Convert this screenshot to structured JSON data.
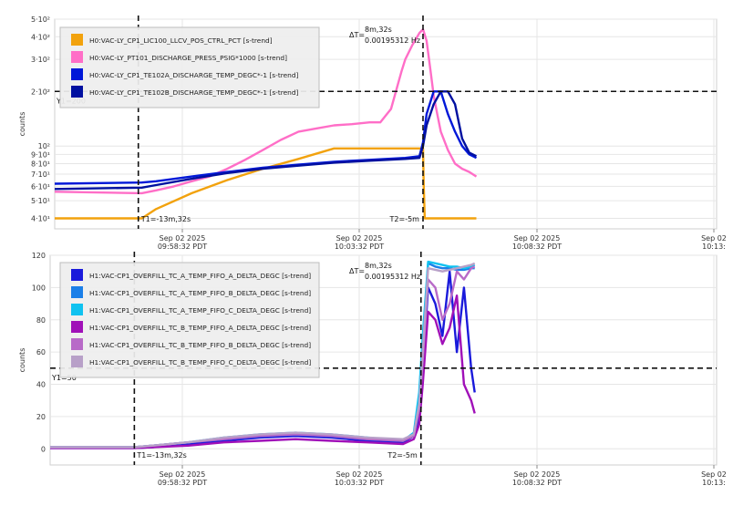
{
  "chart_data": [
    {
      "type": "line",
      "ylabel": "counts",
      "yscale": "log",
      "ylim": [
        35,
        500
      ],
      "ytick_values": [
        40,
        50,
        60,
        70,
        80,
        90,
        100,
        200,
        300,
        400,
        500
      ],
      "ytick_labels": [
        "4·10¹",
        "5·10¹",
        "6·10¹",
        "7·10¹",
        "8·10¹",
        "9·10¹",
        "10²",
        "2·10²",
        "3·10²",
        "4·10²",
        "5·10²"
      ],
      "xticks": [
        {
          "line1": "Sep 02 2025",
          "line2": "09:58:32 PDT"
        },
        {
          "line1": "Sep 02 2025",
          "line2": "10:03:32 PDT"
        },
        {
          "line1": "Sep 02 2025",
          "line2": "10:08:32 PDT"
        },
        {
          "line1": "Sep 02",
          "line2": "10:13:"
        }
      ],
      "xlim_min_offsets_from_first_tick": [
        -2.85,
        15.75
      ],
      "cursors": {
        "t1_label": "T1=-13m,32s",
        "t2_label": "T2=-5m",
        "t1_x": -0.5,
        "t2_x": 7.5,
        "y1_label": "Y1=200",
        "y1_value": 200,
        "delta_label": "ΔT=",
        "delta_time": "8m,32s",
        "delta_freq": "0.00195312 Hz"
      },
      "series": [
        {
          "name": "H0:VAC-LY_CP1_LIC100_LLCV_POS_CTRL_PCT [s-trend]",
          "color": "#f2a20d",
          "x": [
            -2.85,
            -0.4,
            0,
            1,
            2,
            3,
            4,
            5,
            6,
            7,
            7.5,
            7.52,
            7.55,
            8.0,
            9.0
          ],
          "y": [
            40,
            40,
            45,
            55,
            65,
            75,
            85,
            97,
            97,
            97,
            97,
            60,
            40,
            40,
            40
          ]
        },
        {
          "name": "H0:VAC-LY_PT101_DISCHARGE_PRESS_PSIG*1000 [s-trend]",
          "color": "#ff6ec7",
          "x": [
            -2.85,
            -0.4,
            0,
            0.5,
            1,
            1.5,
            2,
            2.5,
            3,
            3.5,
            4,
            4.5,
            5,
            5.5,
            6,
            6.3,
            6.6,
            6.9,
            7.0,
            7.2,
            7.4,
            7.5,
            7.6,
            7.7,
            7.8,
            7.9,
            8.0,
            8.2,
            8.4,
            8.6,
            8.8,
            9.0
          ],
          "y": [
            56,
            55,
            57,
            60,
            64,
            68,
            75,
            84,
            95,
            108,
            120,
            125,
            130,
            132,
            135,
            135,
            160,
            260,
            300,
            360,
            420,
            440,
            380,
            270,
            190,
            150,
            120,
            95,
            80,
            75,
            72,
            68
          ]
        },
        {
          "name": "H0:VAC-LY_CP1_TE102A_DISCHARGE_TEMP_DEGC*-1 [s-trend]",
          "color": "#0018d8",
          "x": [
            -2.85,
            -0.4,
            0,
            1,
            2,
            3,
            4,
            5,
            6,
            7,
            7.4,
            7.5,
            7.6,
            7.8,
            8.0,
            8.2,
            8.4,
            8.6,
            8.8,
            9.0
          ],
          "y": [
            62,
            63,
            64,
            68,
            72,
            76,
            79,
            82,
            84,
            86,
            88,
            105,
            150,
            200,
            200,
            150,
            120,
            100,
            90,
            86
          ]
        },
        {
          "name": "H0:VAC-LY_CP1_TE102B_DISCHARGE_TEMP_DEGC*-1 [s-trend]",
          "color": "#0010a0",
          "x": [
            -2.85,
            -0.4,
            0,
            1,
            2,
            3,
            4,
            5,
            6,
            7,
            7.4,
            7.5,
            7.6,
            7.8,
            8.0,
            8.2,
            8.4,
            8.6,
            8.8,
            9.0
          ],
          "y": [
            58,
            59,
            61,
            66,
            71,
            75,
            78,
            81,
            83,
            85,
            86,
            100,
            130,
            170,
            200,
            200,
            170,
            110,
            92,
            88
          ]
        }
      ]
    },
    {
      "type": "line",
      "ylabel": "counts",
      "yscale": "linear",
      "ylim": [
        -10,
        120
      ],
      "ytick_values": [
        0,
        20,
        40,
        60,
        80,
        100,
        120
      ],
      "ytick_labels": [
        "0",
        "20",
        "40",
        "60",
        "80",
        "100",
        "120"
      ],
      "xticks": [
        {
          "line1": "Sep 02 2025",
          "line2": "09:58:32 PDT"
        },
        {
          "line1": "Sep 02 2025",
          "line2": "10:03:32 PDT"
        },
        {
          "line1": "Sep 02 2025",
          "line2": "10:08:32 PDT"
        },
        {
          "line1": "Sep 02",
          "line2": "10:13:"
        }
      ],
      "xlim_min_offsets_from_first_tick": [
        -2.85,
        15.75
      ],
      "cursors": {
        "t1_label": "T1=-13m,32s",
        "t2_label": "T2=-5m",
        "t1_x": -0.5,
        "t2_x": 7.5,
        "y1_label": "Y1=50",
        "y1_value": 50,
        "delta_label": "ΔT=",
        "delta_time": "8m,32s",
        "delta_freq": "0.00195312 Hz"
      },
      "series": [
        {
          "name": "H1:VAC-CP1_OVERFILL_TC_A_TEMP_FIFO_A_DELTA_DEGC [s-trend]",
          "color": "#1a1adb",
          "x": [
            -2.85,
            -0.5,
            0,
            1,
            2,
            3,
            4,
            5,
            6,
            7,
            7.3,
            7.45,
            7.55,
            7.7,
            7.9,
            8.1,
            8.3,
            8.5,
            8.7,
            8.9,
            9.0
          ],
          "y": [
            0.5,
            0.5,
            1,
            3,
            5,
            7,
            8,
            7,
            5,
            4,
            8,
            20,
            50,
            100,
            90,
            70,
            110,
            60,
            100,
            50,
            35
          ]
        },
        {
          "name": "H1:VAC-CP1_OVERFILL_TC_A_TEMP_FIFO_B_DELTA_DEGC [s-trend]",
          "color": "#1b7fe8",
          "x": [
            -2.85,
            -0.5,
            0,
            1,
            2,
            3,
            4,
            5,
            6,
            7,
            7.3,
            7.45,
            7.55,
            7.7,
            7.9,
            8.1,
            8.3,
            8.5,
            8.7,
            8.9,
            9.0
          ],
          "y": [
            1,
            1,
            2,
            4,
            6,
            8,
            9,
            8,
            6,
            5,
            9,
            30,
            60,
            115,
            113,
            112,
            112,
            111,
            111,
            112,
            112
          ]
        },
        {
          "name": "H1:VAC-CP1_OVERFILL_TC_A_TEMP_FIFO_C_DELTA_DEGC [s-trend]",
          "color": "#10c2f0",
          "x": [
            -2.85,
            -0.5,
            0,
            1,
            2,
            3,
            4,
            5,
            6,
            7,
            7.3,
            7.45,
            7.55,
            7.7,
            7.9,
            8.1,
            8.3,
            8.5,
            8.7,
            8.9,
            9.0
          ],
          "y": [
            1,
            1,
            2,
            4,
            7,
            9,
            10,
            9,
            7,
            5,
            10,
            35,
            70,
            116,
            115,
            114,
            113,
            113,
            112,
            113,
            114
          ]
        },
        {
          "name": "H1:VAC-CP1_OVERFILL_TC_B_TEMP_FIFO_A_DELTA_DEGC [s-trend]",
          "color": "#a010b8",
          "x": [
            -2.85,
            -0.5,
            0,
            1,
            2,
            3,
            4,
            5,
            6,
            7,
            7.3,
            7.45,
            7.55,
            7.7,
            7.9,
            8.1,
            8.3,
            8.5,
            8.7,
            8.9,
            9.0
          ],
          "y": [
            0.5,
            0.5,
            1,
            2,
            4,
            5,
            6,
            5,
            4,
            3,
            6,
            15,
            40,
            85,
            80,
            65,
            75,
            95,
            40,
            30,
            22
          ]
        },
        {
          "name": "H1:VAC-CP1_OVERFILL_TC_B_TEMP_FIFO_B_DELTA_DEGC [s-trend]",
          "color": "#b86ac8",
          "x": [
            -2.85,
            -0.5,
            0,
            1,
            2,
            3,
            4,
            5,
            6,
            7,
            7.3,
            7.45,
            7.55,
            7.7,
            7.9,
            8.1,
            8.3,
            8.5,
            8.7,
            8.9,
            9.0
          ],
          "y": [
            1,
            1,
            2,
            4,
            6,
            8,
            9,
            8,
            6,
            5,
            8,
            25,
            55,
            105,
            100,
            80,
            90,
            110,
            105,
            112,
            113
          ]
        },
        {
          "name": "H1:VAC-CP1_OVERFILL_TC_B_TEMP_FIFO_C_DELTA_DEGC [s-trend]",
          "color": "#b8a0c8",
          "x": [
            -2.85,
            -0.5,
            0,
            1,
            2,
            3,
            4,
            5,
            6,
            7,
            7.3,
            7.45,
            7.55,
            7.7,
            7.9,
            8.1,
            8.3,
            8.5,
            8.7,
            8.9,
            9.0
          ],
          "y": [
            1,
            1,
            2,
            4,
            7,
            9,
            10,
            9,
            7,
            6,
            9,
            28,
            60,
            112,
            111,
            110,
            111,
            112,
            113,
            114,
            115
          ]
        }
      ]
    }
  ]
}
